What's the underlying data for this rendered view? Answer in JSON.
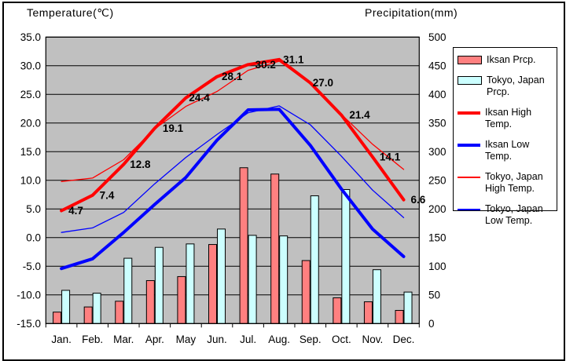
{
  "titles": {
    "left": "Temperature(℃)",
    "right": "Precipitation(mm)"
  },
  "legend": {
    "items": [
      {
        "label": "Iksan Prcp."
      },
      {
        "label": "Tokyo, Japan Prcp."
      },
      {
        "label": "Iksan High Temp."
      },
      {
        "label": "Iksan Low Temp."
      },
      {
        "label": "Tokyo, Japan High Temp."
      },
      {
        "label": "Tokyo, Japan Low Temp."
      }
    ]
  },
  "chart_data": {
    "type": "combo",
    "categories": [
      "Jan.",
      "Feb.",
      "Mar.",
      "Apr.",
      "May",
      "Jun.",
      "Jul.",
      "Aug.",
      "Sep.",
      "Oct.",
      "Nov.",
      "Dec."
    ],
    "series": [
      {
        "name": "Iksan Prcp.",
        "type": "bar",
        "axis": "precip",
        "color": "#FF8080",
        "values": [
          20,
          29,
          39,
          75,
          82,
          138,
          272,
          261,
          110,
          45,
          38,
          23
        ]
      },
      {
        "name": "Tokyo, Japan Prcp.",
        "type": "bar",
        "axis": "precip",
        "color": "#CCFFFF",
        "values": [
          58,
          53,
          114,
          133,
          139,
          165,
          154,
          153,
          223,
          234,
          94,
          55
        ]
      },
      {
        "name": "Iksan High Temp.",
        "type": "line",
        "axis": "temp",
        "color": "#FF0000",
        "width": 4,
        "data_labels": true,
        "values": [
          4.7,
          7.4,
          12.8,
          19.1,
          24.4,
          28.1,
          30.2,
          31.1,
          27.0,
          21.4,
          14.1,
          6.6
        ]
      },
      {
        "name": "Iksan Low Temp.",
        "type": "line",
        "axis": "temp",
        "color": "#0000FF",
        "width": 4,
        "data_labels": false,
        "values": [
          -5.4,
          -3.7,
          0.9,
          5.8,
          10.5,
          17.0,
          22.3,
          22.4,
          16.1,
          8.5,
          1.5,
          -3.3
        ]
      },
      {
        "name": "Tokyo, Japan High Temp.",
        "type": "line",
        "axis": "temp",
        "color": "#FF0000",
        "width": 1.3,
        "data_labels": false,
        "values": [
          9.8,
          10.4,
          13.6,
          19.0,
          22.9,
          25.5,
          29.2,
          30.8,
          26.9,
          21.5,
          16.3,
          11.9
        ]
      },
      {
        "name": "Tokyo, Japan Low Temp.",
        "type": "line",
        "axis": "temp",
        "color": "#0000FF",
        "width": 1.3,
        "data_labels": false,
        "values": [
          0.9,
          1.7,
          4.4,
          9.4,
          14.0,
          18.0,
          21.8,
          23.0,
          19.7,
          14.2,
          8.3,
          3.5
        ]
      }
    ],
    "temp_axis": {
      "title": "Temperature(℃)",
      "min": -15,
      "max": 35,
      "tick_labels": [
        "35.0",
        "30.0",
        "25.0",
        "20.0",
        "15.0",
        "10.0",
        "5.0",
        "0.0",
        "-5.0",
        "-10.0",
        "-15.0"
      ]
    },
    "precip_axis": {
      "title": "Precipitation(mm)",
      "min": 0,
      "max": 500,
      "tick_labels": [
        "500",
        "450",
        "400",
        "350",
        "300",
        "250",
        "200",
        "150",
        "100",
        "50",
        "0"
      ]
    },
    "plot_bg": "#C0C0C0",
    "grid": "horizontal",
    "legend_position": "right"
  }
}
